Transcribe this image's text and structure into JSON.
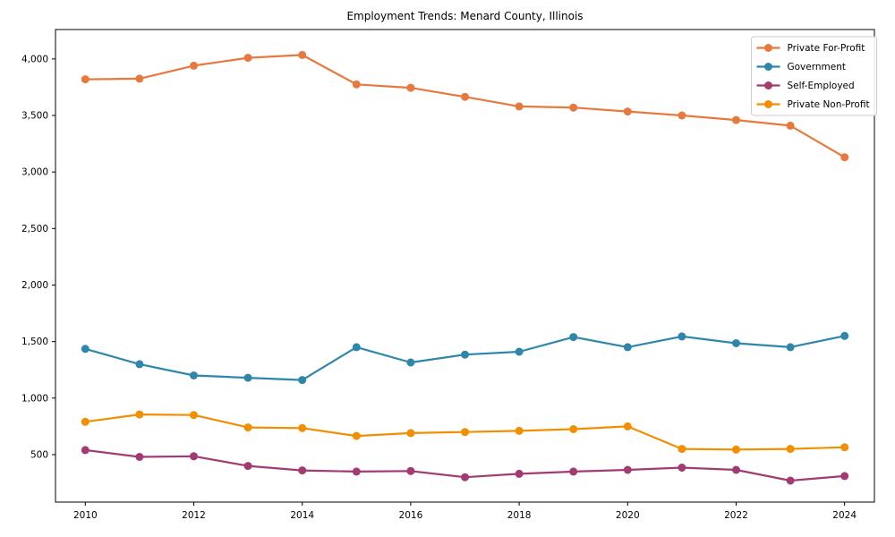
{
  "figure": {
    "background": "#ffffff",
    "axis_color": "#000000",
    "legend_border_color": "#cccccc"
  },
  "chart_data": {
    "type": "line",
    "title": "Employment Trends: Menard County, Illinois",
    "xlabel": "",
    "ylabel": "",
    "x": [
      2010,
      2011,
      2012,
      2013,
      2014,
      2015,
      2016,
      2017,
      2018,
      2019,
      2020,
      2021,
      2022,
      2023,
      2024
    ],
    "series": [
      {
        "name": "Private For-Profit",
        "color": "#E8793E",
        "values": [
          3820,
          3825,
          3940,
          4010,
          4035,
          3775,
          3745,
          3665,
          3580,
          3570,
          3535,
          3500,
          3460,
          3410,
          3130
        ]
      },
      {
        "name": "Government",
        "color": "#2E86AB",
        "values": [
          1435,
          1300,
          1200,
          1180,
          1160,
          1450,
          1315,
          1385,
          1410,
          1540,
          1450,
          1545,
          1485,
          1450,
          1550
        ]
      },
      {
        "name": "Self-Employed",
        "color": "#A23B72",
        "values": [
          540,
          480,
          485,
          400,
          360,
          350,
          355,
          300,
          330,
          350,
          365,
          385,
          365,
          270,
          310
        ]
      },
      {
        "name": "Private Non-Profit",
        "color": "#F18F01",
        "values": [
          790,
          855,
          850,
          740,
          735,
          665,
          690,
          700,
          710,
          725,
          750,
          550,
          545,
          550,
          565
        ]
      }
    ],
    "xticks": [
      2010,
      2012,
      2014,
      2016,
      2018,
      2020,
      2022,
      2024
    ],
    "yticks": [
      500,
      1000,
      1500,
      2000,
      2500,
      3000,
      3500,
      4000
    ],
    "ytick_labels": [
      "500",
      "1,000",
      "1,500",
      "2,000",
      "2,500",
      "3,000",
      "3,500",
      "4,000"
    ],
    "xlim": [
      2009.45,
      2024.55
    ],
    "ylim": [
      80,
      4260
    ],
    "grid": false,
    "marker": "circle",
    "legend_position": "upper right"
  }
}
